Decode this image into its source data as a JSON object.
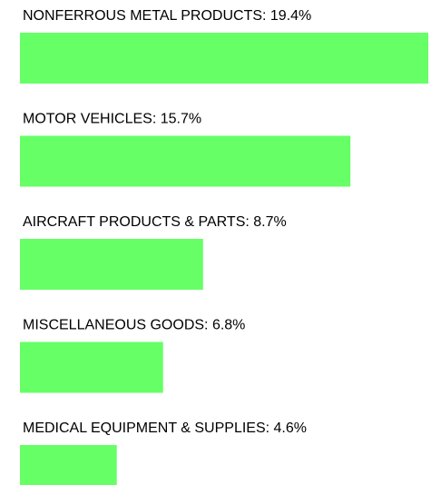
{
  "chart_data": {
    "type": "bar",
    "categories": [
      "NONFERROUS METAL PRODUCTS: 19.4%",
      "MOTOR VEHICLES: 15.7%",
      "AIRCRAFT PRODUCTS & PARTS: 8.7%",
      "MISCELLANEOUS GOODS: 6.8%",
      "MEDICAL EQUIPMENT & SUPPLIES: 4.6%"
    ],
    "values": [
      19.4,
      15.7,
      8.7,
      6.8,
      4.6
    ],
    "color": "#66ff66"
  }
}
